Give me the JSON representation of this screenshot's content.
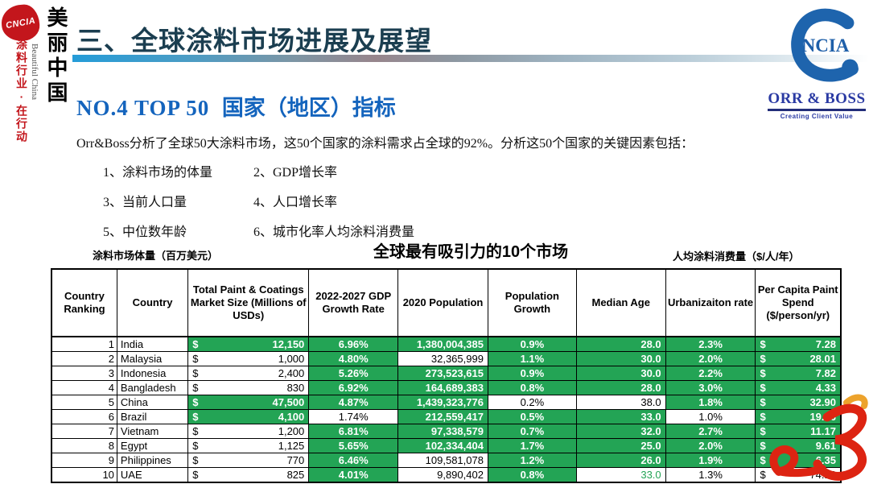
{
  "brand": {
    "seal": "CNCIA",
    "vertical_title": "美丽中国",
    "vertical_subtitle_en": "Beautiful China",
    "vertical_slogan": "涂料行业·在行动",
    "ncia": "NCIA",
    "orrboss": "ORR & BOSS",
    "orrboss_tagline": "Creating Client Value"
  },
  "header": {
    "title": "三、全球涂料市场进展及展望",
    "section_prefix": "NO.4  TOP 50",
    "section_suffix": "国家（地区）指标"
  },
  "intro": {
    "lead": "Orr&Boss分析了全球50大涂料市场，这50个国家的涂料需求占全球的92%。分析这50个国家的关键因素包括：",
    "factors": [
      "1、涂料市场的体量",
      "2、GDP增长率",
      "3、当前人口量",
      "4、人口增长率",
      "5、中位数年龄",
      "6、城市化率人均涂料消费量"
    ]
  },
  "table_section": {
    "left_note": "涂料市场体量（百万美元）",
    "title": "全球最有吸引力的10个市场",
    "right_note": "人均涂料消费量（$/人/年）"
  },
  "table": {
    "headers": [
      "Country Ranking",
      "Country",
      "Total Paint & Coatings Market Size (Millions of USDs)",
      "2022-2027 GDP Growth Rate",
      "2020 Population",
      "Population Growth",
      "Median Age",
      "Urbanizaiton rate",
      "Per Capita Paint Spend ($/person/yr)"
    ],
    "col_types": [
      "rank",
      "country",
      "money",
      "center",
      "right",
      "center",
      "right",
      "center",
      "money"
    ],
    "colors": {
      "green": "#23a455"
    },
    "rows": [
      {
        "rank": "1",
        "country": "India",
        "cells": [
          [
            "12,150",
            "g"
          ],
          [
            "6.96%",
            "g"
          ],
          [
            "1,380,004,385",
            "g"
          ],
          [
            "0.9%",
            "g"
          ],
          [
            "28.0",
            "g"
          ],
          [
            "2.3%",
            "g"
          ],
          [
            "7.28",
            "g"
          ]
        ]
      },
      {
        "rank": "2",
        "country": "Malaysia",
        "cells": [
          [
            "1,000",
            "w"
          ],
          [
            "4.80%",
            "g"
          ],
          [
            "32,365,999",
            "w"
          ],
          [
            "1.1%",
            "g"
          ],
          [
            "30.0",
            "g"
          ],
          [
            "2.0%",
            "g"
          ],
          [
            "28.01",
            "g"
          ]
        ]
      },
      {
        "rank": "3",
        "country": "Indonesia",
        "cells": [
          [
            "2,400",
            "w"
          ],
          [
            "5.26%",
            "g"
          ],
          [
            "273,523,615",
            "g"
          ],
          [
            "0.9%",
            "g"
          ],
          [
            "30.0",
            "g"
          ],
          [
            "2.2%",
            "g"
          ],
          [
            "7.82",
            "g"
          ]
        ]
      },
      {
        "rank": "4",
        "country": "Bangladesh",
        "cells": [
          [
            "830",
            "w"
          ],
          [
            "6.92%",
            "g"
          ],
          [
            "164,689,383",
            "g"
          ],
          [
            "0.8%",
            "g"
          ],
          [
            "28.0",
            "g"
          ],
          [
            "3.0%",
            "g"
          ],
          [
            "4.33",
            "g"
          ]
        ]
      },
      {
        "rank": "5",
        "country": "China",
        "cells": [
          [
            "47,500",
            "g"
          ],
          [
            "4.87%",
            "g"
          ],
          [
            "1,439,323,776",
            "g"
          ],
          [
            "0.2%",
            "w"
          ],
          [
            "38.0",
            "w"
          ],
          [
            "1.8%",
            "g"
          ],
          [
            "32.90",
            "g"
          ]
        ]
      },
      {
        "rank": "6",
        "country": "Brazil",
        "cells": [
          [
            "4,100",
            "g"
          ],
          [
            "1.74%",
            "w"
          ],
          [
            "212,559,417",
            "g"
          ],
          [
            "0.5%",
            "g"
          ],
          [
            "33.0",
            "g"
          ],
          [
            "1.0%",
            "w"
          ],
          [
            "19.16",
            "g"
          ]
        ]
      },
      {
        "rank": "7",
        "country": "Vietnam",
        "cells": [
          [
            "1,200",
            "w"
          ],
          [
            "6.81%",
            "g"
          ],
          [
            "97,338,579",
            "g"
          ],
          [
            "0.7%",
            "g"
          ],
          [
            "32.0",
            "g"
          ],
          [
            "2.7%",
            "g"
          ],
          [
            "11.17",
            "g"
          ]
        ]
      },
      {
        "rank": "8",
        "country": "Egypt",
        "cells": [
          [
            "1,125",
            "w"
          ],
          [
            "5.65%",
            "g"
          ],
          [
            "102,334,404",
            "g"
          ],
          [
            "1.7%",
            "g"
          ],
          [
            "25.0",
            "g"
          ],
          [
            "2.0%",
            "g"
          ],
          [
            "9.61",
            "g"
          ]
        ]
      },
      {
        "rank": "9",
        "country": "Philippines",
        "cells": [
          [
            "770",
            "w"
          ],
          [
            "6.46%",
            "g"
          ],
          [
            "109,581,078",
            "w"
          ],
          [
            "1.2%",
            "g"
          ],
          [
            "26.0",
            "g"
          ],
          [
            "1.9%",
            "g"
          ],
          [
            "6.35",
            "g"
          ]
        ]
      },
      {
        "rank": "10",
        "country": "UAE",
        "cells": [
          [
            "825",
            "w"
          ],
          [
            "4.01%",
            "g"
          ],
          [
            "9,890,402",
            "w"
          ],
          [
            "0.8%",
            "g"
          ],
          [
            "33.0",
            "wg"
          ],
          [
            "1.3%",
            "w"
          ],
          [
            "74.12",
            "w"
          ]
        ]
      }
    ],
    "currency_symbol": "$"
  },
  "watermark": {
    "colors": {
      "red": "#dd2412",
      "orange": "#eda32c"
    }
  }
}
